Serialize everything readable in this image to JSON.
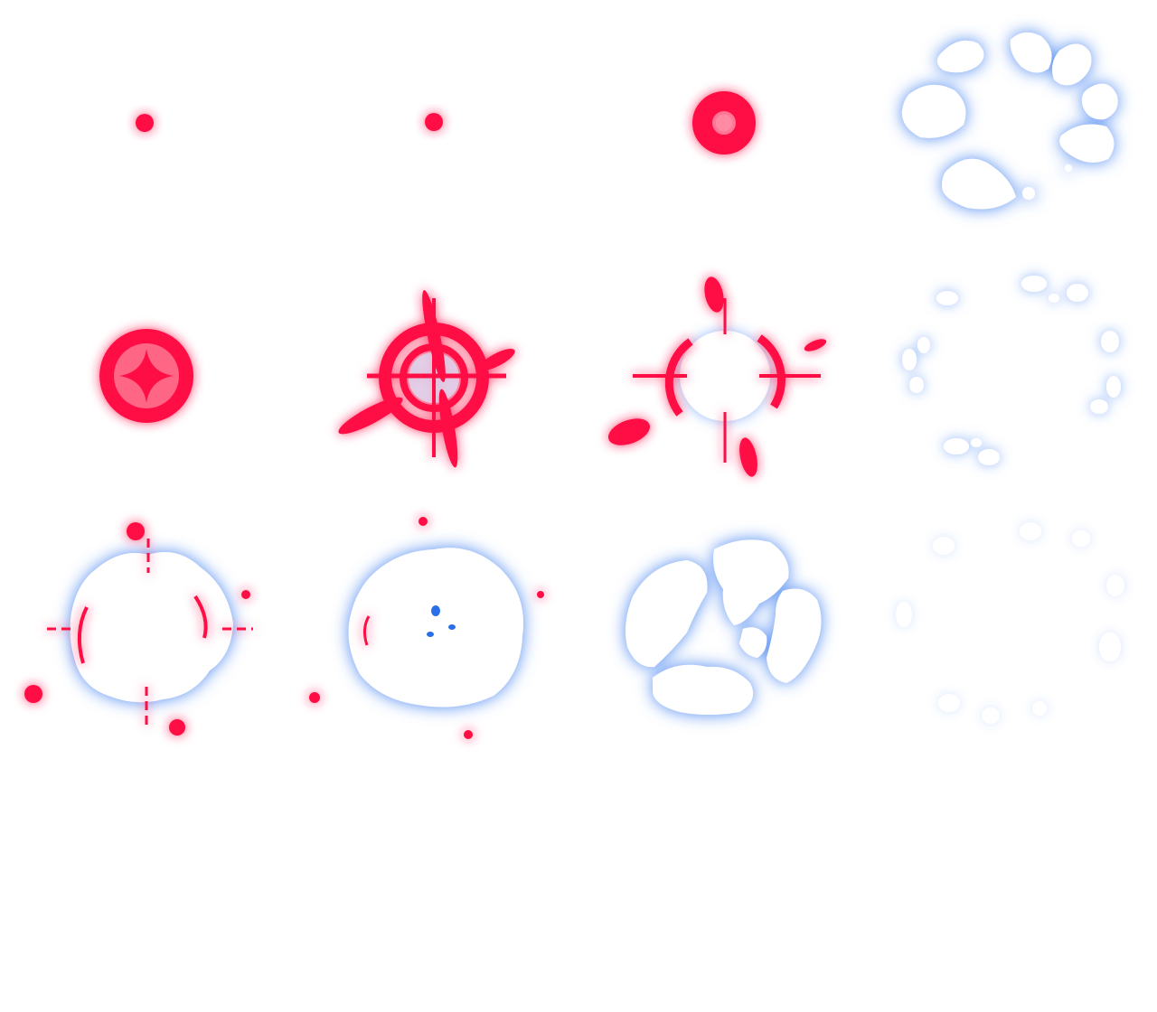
{
  "sprite_sheet": {
    "layout": {
      "columns": 4,
      "rows": 3
    },
    "colors": {
      "background": "#ffffff",
      "target_red": "#ff1144",
      "target_red_glow": "#ff3366",
      "smoke_glow": "#3d7ef0",
      "smoke_fill": "#ffffff",
      "smoke_dark": "#1e66e0"
    },
    "frames": [
      {
        "id": 1,
        "name": "target-dot-large",
        "effect": "reticle-spawn"
      },
      {
        "id": 2,
        "name": "target-dot-small",
        "effect": "reticle-spawn"
      },
      {
        "id": 3,
        "name": "target-ring",
        "effect": "reticle-spawn"
      },
      {
        "id": 4,
        "name": "smoke-ring-scatter",
        "effect": "dissipate"
      },
      {
        "id": 5,
        "name": "target-emblem",
        "effect": "reticle-lock"
      },
      {
        "id": 6,
        "name": "target-crosshair-spin",
        "effect": "reticle-lock"
      },
      {
        "id": 7,
        "name": "target-crosshair-burst",
        "effect": "impact"
      },
      {
        "id": 8,
        "name": "smoke-ring-fade",
        "effect": "dissipate"
      },
      {
        "id": 9,
        "name": "impact-burst-cloud",
        "effect": "impact"
      },
      {
        "id": 10,
        "name": "impact-smoke-cloud",
        "effect": "impact"
      },
      {
        "id": 11,
        "name": "smoke-cloud-breakup",
        "effect": "dissipate"
      },
      {
        "id": 12,
        "name": "smoke-ring-vanish",
        "effect": "dissipate"
      }
    ]
  }
}
